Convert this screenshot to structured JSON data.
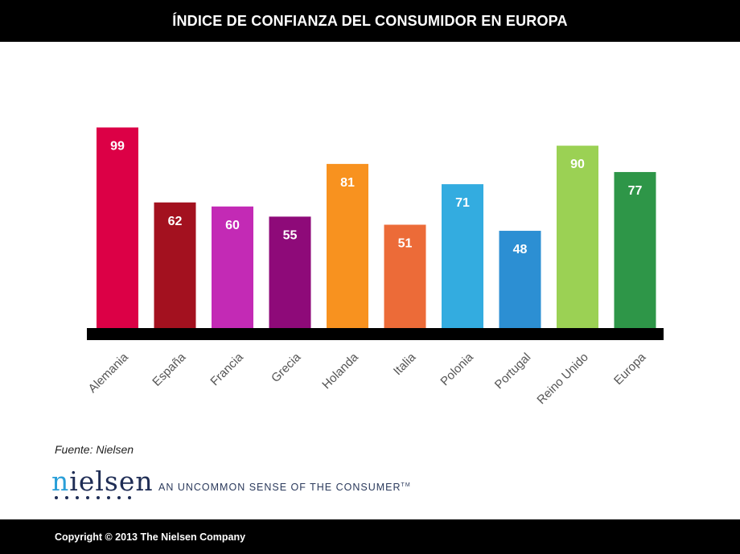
{
  "header": {
    "title": "ÍNDICE DE CONFIANZA DEL CONSUMIDOR EN EUROPA"
  },
  "chart_data": {
    "type": "bar",
    "title": "ÍNDICE DE CONFIANZA DEL CONSUMIDOR EN EUROPA",
    "categories": [
      "Alemania",
      "España",
      "Francia",
      "Grecia",
      "Holanda",
      "Italia",
      "Polonia",
      "Portugal",
      "Reino Unido",
      "Europa"
    ],
    "values": [
      99,
      62,
      60,
      55,
      81,
      51,
      71,
      48,
      90,
      77
    ],
    "colors": [
      "#dc0046",
      "#a3111f",
      "#c32ab5",
      "#8e0a79",
      "#f8921f",
      "#ec6b38",
      "#33ace0",
      "#2c8fd3",
      "#9bd154",
      "#2e9648"
    ],
    "data_label_color": "#ffffff",
    "baseline_color": "#000000",
    "xlabel": "",
    "ylabel": "",
    "ylim": [
      0,
      100
    ],
    "grid": false,
    "legend": "none"
  },
  "source": {
    "text": "Fuente: Nielsen"
  },
  "brand": {
    "logo_text": "nielsen",
    "tagline": "AN UNCOMMON SENSE OF THE CONSUMER",
    "tagline_mark": "TM"
  },
  "footer": {
    "copyright": "Copyright © 2013 The Nielsen Company"
  }
}
